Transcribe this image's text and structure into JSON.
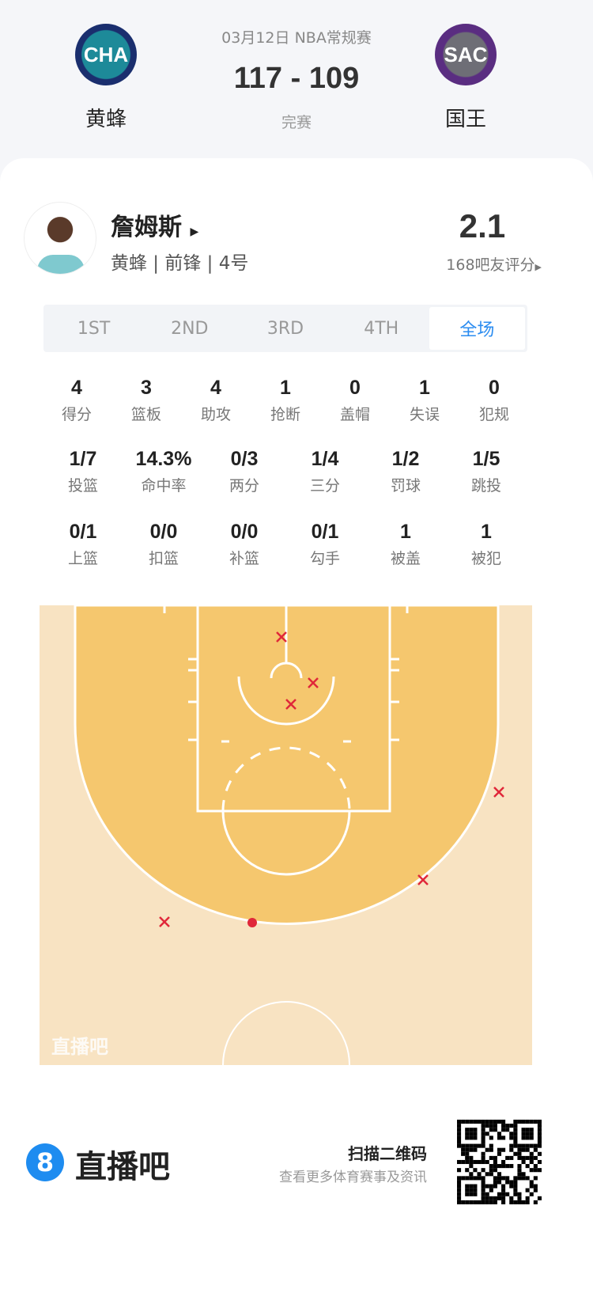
{
  "match": {
    "date_league": "03月12日 NBA常规赛",
    "score": "117 - 109",
    "status": "完赛",
    "home": {
      "abbr": "CHA",
      "name": "黄蜂",
      "color": "#1d8a99"
    },
    "away": {
      "abbr": "SAC",
      "name": "国王",
      "color": "#5a2d81"
    }
  },
  "player": {
    "name": "詹姆斯",
    "info": "黄蜂 | 前锋 | 4号",
    "rating": "2.1",
    "rating_label": "168吧友评分"
  },
  "tabs": [
    "1ST",
    "2ND",
    "3RD",
    "4TH",
    "全场"
  ],
  "active_tab": "全场",
  "stats_row1": [
    {
      "v": "4",
      "l": "得分"
    },
    {
      "v": "3",
      "l": "篮板"
    },
    {
      "v": "4",
      "l": "助攻"
    },
    {
      "v": "1",
      "l": "抢断"
    },
    {
      "v": "0",
      "l": "盖帽"
    },
    {
      "v": "1",
      "l": "失误"
    },
    {
      "v": "0",
      "l": "犯规"
    }
  ],
  "stats_row2": [
    {
      "v": "1/7",
      "l": "投篮"
    },
    {
      "v": "14.3%",
      "l": "命中率"
    },
    {
      "v": "0/3",
      "l": "两分"
    },
    {
      "v": "1/4",
      "l": "三分"
    },
    {
      "v": "1/2",
      "l": "罚球"
    },
    {
      "v": "1/5",
      "l": "跳投"
    }
  ],
  "stats_row3": [
    {
      "v": "0/1",
      "l": "上篮"
    },
    {
      "v": "0/0",
      "l": "扣篮"
    },
    {
      "v": "0/0",
      "l": "补篮"
    },
    {
      "v": "0/1",
      "l": "勾手"
    },
    {
      "v": "1",
      "l": "被盖"
    },
    {
      "v": "1",
      "l": "被犯"
    }
  ],
  "shots": [
    "miss",
    "miss",
    "miss",
    "miss",
    "miss",
    "miss",
    "made"
  ],
  "court": {
    "watermark": "直播吧",
    "paint_color": "#f5c76e",
    "floor_color": "#f8e3c2",
    "marker_color": "#e0283a"
  },
  "footer": {
    "brand": "直播吧",
    "scan": "扫描二维码",
    "desc": "查看更多体育赛事及资讯"
  }
}
